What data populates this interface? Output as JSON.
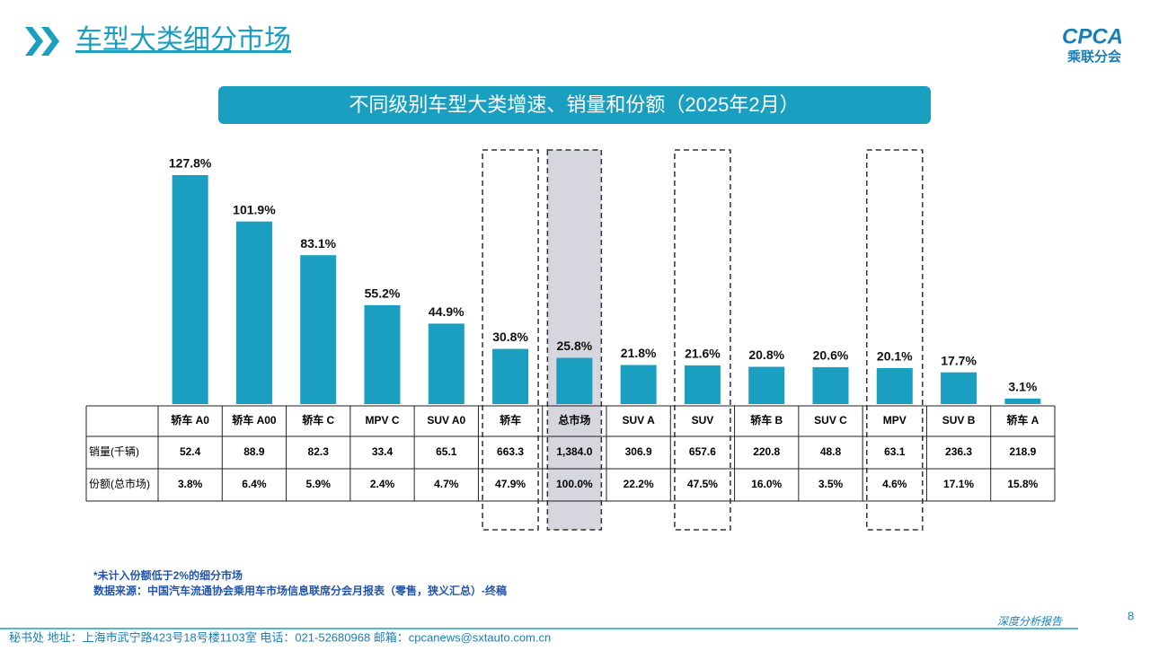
{
  "page_title": "车型大类细分市场",
  "logo": {
    "text": "CPCA",
    "subtext": "乘联分会"
  },
  "chart_data": {
    "type": "bar",
    "title": "不同级别车型大类增速、销量和份额（2025年2月）",
    "categories": [
      "轿车 A0",
      "轿车 A00",
      "轿车 C",
      "MPV C",
      "SUV A0",
      "轿车",
      "总市场",
      "SUV A",
      "SUV",
      "轿车 B",
      "SUV C",
      "MPV",
      "SUV B",
      "轿车 A"
    ],
    "values": [
      127.8,
      101.9,
      83.1,
      55.2,
      44.9,
      30.8,
      25.8,
      21.8,
      21.6,
      20.8,
      20.6,
      20.1,
      17.7,
      3.1
    ],
    "value_labels": [
      "127.8%",
      "101.9%",
      "83.1%",
      "55.2%",
      "44.9%",
      "30.8%",
      "25.8%",
      "21.8%",
      "21.6%",
      "20.8%",
      "20.6%",
      "20.1%",
      "17.7%",
      "3.1%"
    ],
    "color": "#1a9fc0"
  },
  "table": {
    "rows": [
      {
        "label": "销量(千辆)",
        "cells": [
          "52.4",
          "88.9",
          "82.3",
          "33.4",
          "65.1",
          "663.3",
          "1,384.0",
          "306.9",
          "657.6",
          "220.8",
          "48.8",
          "63.1",
          "236.3",
          "218.9"
        ]
      },
      {
        "label": "份额(总市场)",
        "cells": [
          "3.8%",
          "6.4%",
          "5.9%",
          "2.4%",
          "4.7%",
          "47.9%",
          "100.0%",
          "22.2%",
          "47.5%",
          "16.0%",
          "3.5%",
          "4.6%",
          "17.1%",
          "15.8%"
        ]
      }
    ]
  },
  "notes": [
    "*未计入份额低于2%的细分市场",
    "数据来源：中国汽车流通协会乘用车市场信息联席分会月报表（零售，狭义汇总）-终稿"
  ],
  "footer": {
    "address": "秘书处   地址：上海市武宁路423号18号楼1103室  电话：021-52680968   邮箱：cpcanews@sxtauto.com.cn",
    "report": "深度分析报告",
    "page": "8"
  }
}
